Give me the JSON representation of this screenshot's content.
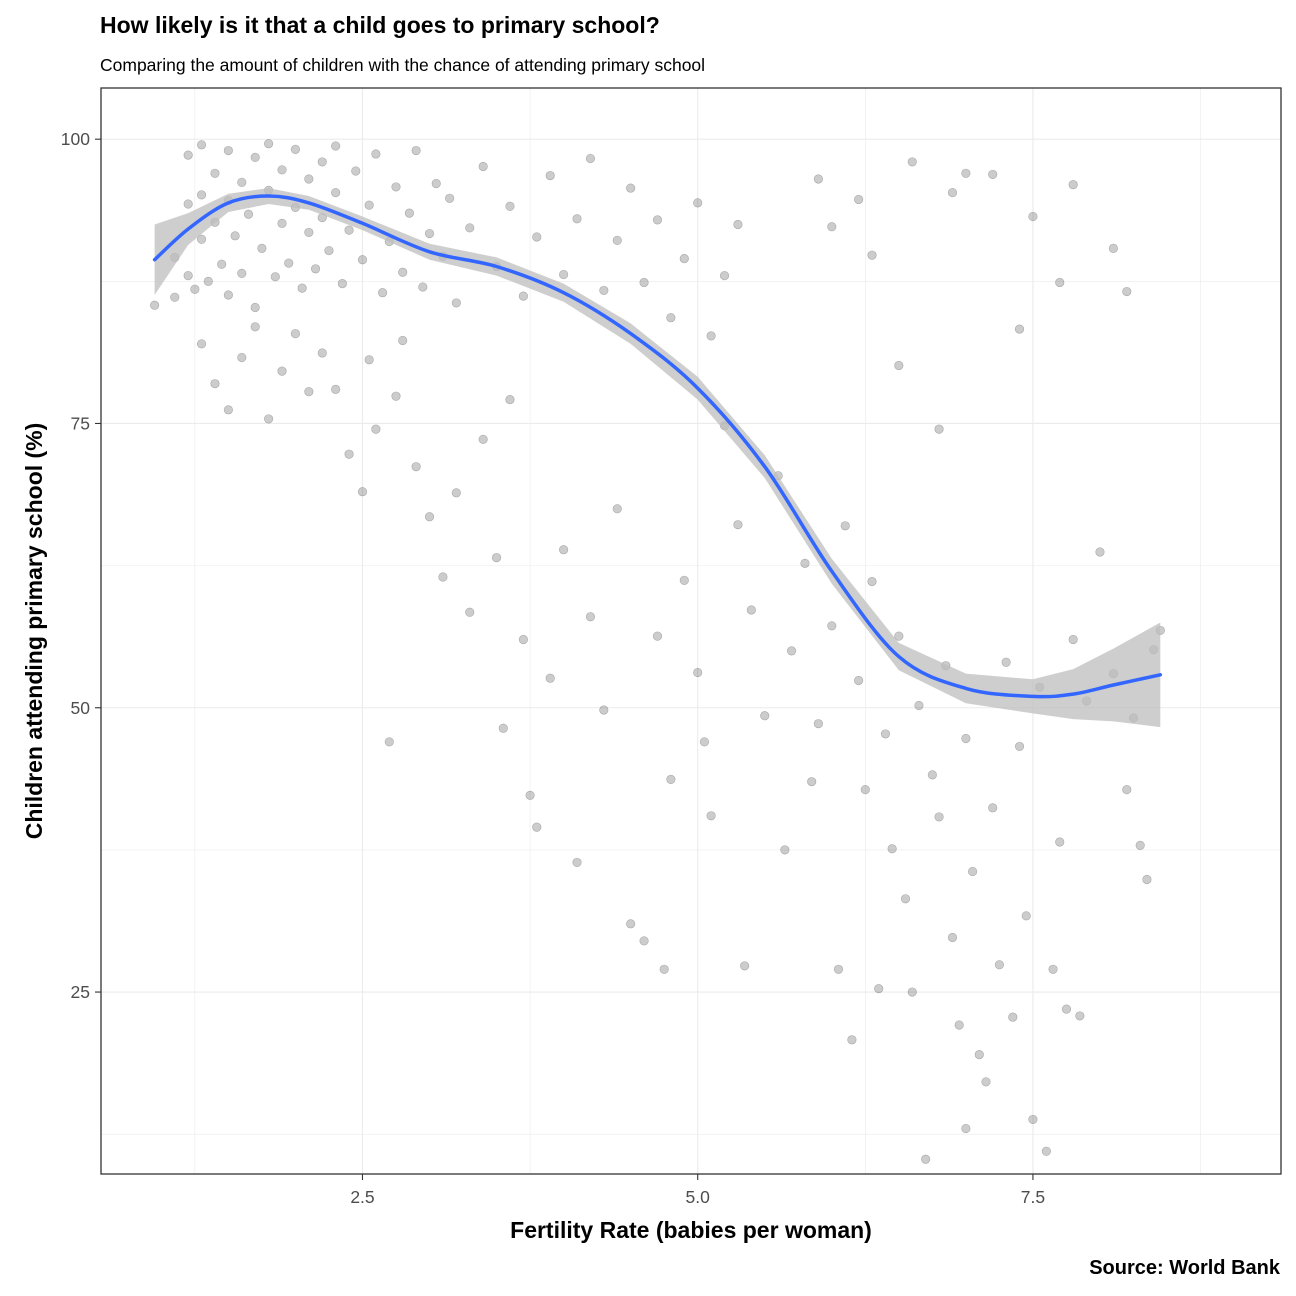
{
  "chart_data": {
    "type": "scatter",
    "title": "How likely is it that a child goes to primary school?",
    "subtitle": "Comparing the amount of children with the chance of attending primary school",
    "caption": "Source: World Bank",
    "xlabel": "Fertility Rate (babies per woman)",
    "ylabel": "Children attending primary school (%)",
    "xlim": [
      0.55,
      9.35
    ],
    "ylim": [
      9.0,
      104.5
    ],
    "x_ticks": [
      2.5,
      5.0,
      7.5
    ],
    "x_tick_labels": [
      "2.5",
      "5.0",
      "7.5"
    ],
    "y_ticks": [
      25,
      50,
      75,
      100
    ],
    "y_tick_labels": [
      "25",
      "50",
      "75",
      "100"
    ],
    "grid": true,
    "legend": "none",
    "colors": {
      "points": "#000000",
      "smooth_line": "#3366FF",
      "confidence_band": "#bdbdbd",
      "grid": "#ebebeb",
      "panel_border": "#333333"
    },
    "series": [
      {
        "kind": "points",
        "approximate": true,
        "points": [
          [
            0.95,
            85.4
          ],
          [
            1.1,
            89.6
          ],
          [
            1.1,
            86.1
          ],
          [
            1.2,
            88.0
          ],
          [
            1.2,
            94.3
          ],
          [
            1.2,
            98.6
          ],
          [
            1.25,
            86.8
          ],
          [
            1.3,
            91.2
          ],
          [
            1.3,
            99.5
          ],
          [
            1.3,
            95.1
          ],
          [
            1.35,
            87.5
          ],
          [
            1.4,
            92.7
          ],
          [
            1.4,
            97.0
          ],
          [
            1.45,
            89.0
          ],
          [
            1.5,
            94.6
          ],
          [
            1.5,
            99.0
          ],
          [
            1.5,
            86.3
          ],
          [
            1.55,
            91.5
          ],
          [
            1.6,
            96.2
          ],
          [
            1.6,
            88.2
          ],
          [
            1.65,
            93.4
          ],
          [
            1.7,
            98.4
          ],
          [
            1.7,
            85.2
          ],
          [
            1.75,
            90.4
          ],
          [
            1.8,
            95.5
          ],
          [
            1.8,
            99.6
          ],
          [
            1.85,
            87.9
          ],
          [
            1.9,
            92.6
          ],
          [
            1.9,
            97.3
          ],
          [
            1.95,
            89.1
          ],
          [
            2.0,
            94.0
          ],
          [
            2.0,
            99.1
          ],
          [
            2.05,
            86.9
          ],
          [
            2.1,
            91.8
          ],
          [
            2.1,
            96.5
          ],
          [
            2.15,
            88.6
          ],
          [
            2.2,
            93.1
          ],
          [
            2.2,
            98.0
          ],
          [
            2.25,
            90.2
          ],
          [
            2.3,
            95.3
          ],
          [
            2.3,
            99.4
          ],
          [
            2.35,
            87.3
          ],
          [
            2.4,
            92.0
          ],
          [
            2.45,
            97.2
          ],
          [
            2.5,
            89.4
          ],
          [
            2.55,
            94.2
          ],
          [
            2.6,
            98.7
          ],
          [
            2.65,
            86.5
          ],
          [
            2.7,
            91.0
          ],
          [
            2.75,
            95.8
          ],
          [
            2.8,
            88.3
          ],
          [
            2.85,
            93.5
          ],
          [
            2.9,
            99.0
          ],
          [
            2.95,
            87.0
          ],
          [
            3.0,
            91.7
          ],
          [
            3.05,
            96.1
          ],
          [
            3.1,
            89.7
          ],
          [
            3.15,
            94.8
          ],
          [
            3.2,
            85.6
          ],
          [
            3.3,
            92.2
          ],
          [
            3.4,
            97.6
          ],
          [
            3.5,
            88.8
          ],
          [
            3.6,
            94.1
          ],
          [
            3.7,
            86.2
          ],
          [
            3.8,
            91.4
          ],
          [
            3.9,
            96.8
          ],
          [
            4.0,
            88.1
          ],
          [
            4.1,
            93.0
          ],
          [
            4.2,
            98.3
          ],
          [
            4.3,
            86.7
          ],
          [
            4.4,
            91.1
          ],
          [
            4.5,
            95.7
          ],
          [
            4.6,
            87.4
          ],
          [
            4.7,
            92.9
          ],
          [
            4.8,
            84.3
          ],
          [
            4.9,
            89.5
          ],
          [
            5.0,
            94.4
          ],
          [
            5.1,
            82.7
          ],
          [
            5.2,
            88.0
          ],
          [
            5.3,
            92.5
          ],
          [
            1.3,
            82.0
          ],
          [
            1.4,
            78.5
          ],
          [
            1.5,
            76.2
          ],
          [
            1.6,
            80.8
          ],
          [
            1.7,
            83.5
          ],
          [
            1.8,
            75.4
          ],
          [
            1.9,
            79.6
          ],
          [
            2.0,
            82.9
          ],
          [
            2.1,
            77.8
          ],
          [
            2.2,
            81.2
          ],
          [
            2.3,
            78.0
          ],
          [
            2.4,
            72.3
          ],
          [
            2.5,
            69.0
          ],
          [
            2.55,
            80.6
          ],
          [
            2.6,
            74.5
          ],
          [
            2.7,
            47.0
          ],
          [
            2.75,
            77.4
          ],
          [
            2.8,
            82.3
          ],
          [
            2.9,
            71.2
          ],
          [
            3.0,
            66.8
          ],
          [
            3.1,
            61.5
          ],
          [
            3.2,
            68.9
          ],
          [
            3.3,
            58.4
          ],
          [
            3.4,
            73.6
          ],
          [
            3.5,
            63.2
          ],
          [
            3.55,
            48.2
          ],
          [
            3.6,
            77.1
          ],
          [
            3.7,
            56.0
          ],
          [
            3.75,
            42.3
          ],
          [
            3.8,
            39.5
          ],
          [
            3.9,
            52.6
          ],
          [
            4.0,
            63.9
          ],
          [
            4.1,
            36.4
          ],
          [
            4.2,
            58.0
          ],
          [
            4.3,
            49.8
          ],
          [
            4.4,
            67.5
          ],
          [
            4.5,
            31.0
          ],
          [
            4.6,
            29.5
          ],
          [
            4.7,
            56.3
          ],
          [
            4.75,
            27.0
          ],
          [
            4.8,
            43.7
          ],
          [
            4.9,
            61.2
          ],
          [
            5.0,
            53.1
          ],
          [
            5.05,
            47.0
          ],
          [
            5.1,
            40.5
          ],
          [
            5.2,
            74.8
          ],
          [
            5.3,
            66.1
          ],
          [
            5.35,
            27.3
          ],
          [
            5.4,
            58.6
          ],
          [
            5.5,
            49.3
          ],
          [
            5.6,
            70.4
          ],
          [
            5.65,
            37.5
          ],
          [
            5.7,
            55.0
          ],
          [
            5.8,
            62.7
          ],
          [
            5.85,
            43.5
          ],
          [
            5.9,
            48.6
          ],
          [
            6.0,
            57.2
          ],
          [
            6.05,
            27.0
          ],
          [
            6.1,
            66.0
          ],
          [
            6.15,
            20.8
          ],
          [
            6.2,
            52.4
          ],
          [
            6.25,
            42.8
          ],
          [
            6.3,
            61.1
          ],
          [
            6.35,
            25.3
          ],
          [
            6.4,
            47.7
          ],
          [
            6.45,
            37.6
          ],
          [
            6.5,
            56.3
          ],
          [
            6.55,
            33.2
          ],
          [
            6.6,
            25.0
          ],
          [
            6.65,
            50.2
          ],
          [
            6.7,
            10.3
          ],
          [
            6.75,
            44.1
          ],
          [
            6.8,
            40.4
          ],
          [
            6.85,
            53.7
          ],
          [
            6.9,
            29.8
          ],
          [
            6.95,
            22.1
          ],
          [
            7.0,
            13.0
          ],
          [
            7.0,
            47.3
          ],
          [
            7.05,
            35.6
          ],
          [
            7.1,
            19.5
          ],
          [
            7.15,
            17.1
          ],
          [
            7.2,
            41.2
          ],
          [
            7.25,
            27.4
          ],
          [
            7.3,
            54.0
          ],
          [
            7.35,
            22.8
          ],
          [
            7.4,
            46.6
          ],
          [
            7.45,
            31.7
          ],
          [
            7.5,
            13.8
          ],
          [
            7.55,
            51.8
          ],
          [
            7.6,
            11.0
          ],
          [
            7.65,
            27.0
          ],
          [
            7.7,
            38.2
          ],
          [
            7.75,
            23.5
          ],
          [
            7.8,
            56.0
          ],
          [
            7.85,
            22.9
          ],
          [
            7.9,
            50.6
          ],
          [
            8.0,
            63.7
          ],
          [
            8.1,
            53.0
          ],
          [
            8.2,
            42.8
          ],
          [
            8.25,
            49.1
          ],
          [
            8.3,
            37.9
          ],
          [
            8.35,
            34.9
          ],
          [
            8.4,
            55.1
          ],
          [
            8.45,
            56.8
          ],
          [
            6.0,
            92.3
          ],
          [
            6.3,
            89.8
          ],
          [
            6.6,
            98.0
          ],
          [
            6.9,
            95.3
          ],
          [
            7.2,
            96.9
          ],
          [
            7.5,
            93.2
          ],
          [
            7.8,
            96.0
          ],
          [
            8.1,
            90.4
          ],
          [
            8.2,
            86.6
          ],
          [
            5.9,
            96.5
          ],
          [
            6.2,
            94.7
          ],
          [
            7.0,
            97.0
          ],
          [
            7.4,
            83.3
          ],
          [
            7.7,
            87.4
          ],
          [
            6.8,
            74.5
          ],
          [
            6.5,
            80.1
          ]
        ]
      },
      {
        "kind": "smooth",
        "name": "",
        "x": [
          0.95,
          1.2,
          1.5,
          1.8,
          2.1,
          2.5,
          3.0,
          3.5,
          4.0,
          4.5,
          5.0,
          5.5,
          6.0,
          6.5,
          7.0,
          7.5,
          7.8,
          8.1,
          8.45
        ],
        "y": [
          89.4,
          92.1,
          94.4,
          95.0,
          94.4,
          92.6,
          90.1,
          88.8,
          86.5,
          82.9,
          78.1,
          71.2,
          62.0,
          54.5,
          51.7,
          51.0,
          51.2,
          52.0,
          52.9
        ],
        "ci_half_width": [
          3.1,
          1.4,
          0.8,
          0.7,
          0.6,
          0.6,
          0.7,
          0.8,
          0.8,
          0.9,
          1.0,
          1.0,
          1.1,
          1.2,
          1.3,
          1.5,
          2.2,
          3.2,
          4.6
        ]
      }
    ]
  }
}
